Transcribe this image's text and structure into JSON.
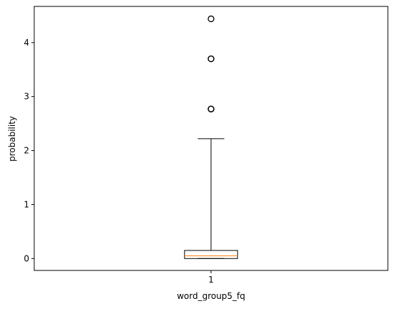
{
  "chart_data": {
    "type": "boxplot",
    "title": "",
    "xlabel": "word_group5_fq",
    "ylabel": "probability",
    "categories": [
      "1"
    ],
    "ylim": [
      -0.22,
      4.67
    ],
    "y_ticks": [
      0,
      1,
      2,
      3,
      4
    ],
    "grid": false,
    "legend": "none",
    "boxes": [
      {
        "category": "1",
        "whisker_low": 0.0,
        "q1": 0.0,
        "median": 0.05,
        "q3": 0.15,
        "whisker_high": 2.22,
        "outliers": [
          2.77,
          2.77,
          2.77,
          3.7,
          3.7,
          4.44
        ]
      }
    ],
    "colors": {
      "box": "#000000",
      "median": "#ff7f0e",
      "outlier": "#000000"
    }
  }
}
